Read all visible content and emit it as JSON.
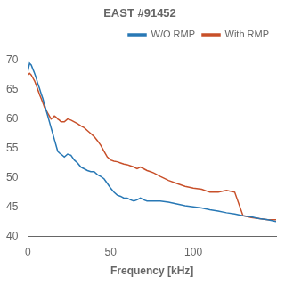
{
  "chart_data": {
    "type": "line",
    "title": "EAST #91452",
    "xlabel": "Frequency [kHz]",
    "xlim": [
      0,
      150
    ],
    "ylim": [
      40,
      72
    ],
    "xticks": [
      0,
      50,
      100
    ],
    "yticks": [
      40,
      45,
      50,
      55,
      60,
      65,
      70
    ],
    "grid": false,
    "legend": "upper right",
    "series": [
      {
        "name": "W/O RMP",
        "color": "#2878b5",
        "x": [
          0,
          1,
          2,
          3,
          4,
          5,
          6,
          7,
          8,
          9,
          10,
          11,
          12,
          13,
          14,
          15,
          16,
          17,
          18,
          19,
          20,
          22,
          24,
          26,
          28,
          30,
          32,
          34,
          36,
          38,
          40,
          42,
          44,
          46,
          48,
          50,
          52,
          54,
          56,
          58,
          60,
          62,
          64,
          66,
          68,
          70,
          72,
          74,
          76,
          78,
          80,
          85,
          90,
          95,
          100,
          105,
          110,
          115,
          120,
          125,
          130,
          135,
          140,
          145,
          150
        ],
        "values": [
          68.2,
          69.5,
          69.2,
          68.5,
          67.8,
          67.0,
          66.0,
          65.2,
          64.3,
          63.5,
          62.5,
          61.5,
          60.5,
          59.5,
          58.5,
          57.5,
          56.5,
          55.5,
          54.5,
          54.2,
          54.0,
          53.5,
          54.0,
          53.8,
          53.0,
          52.5,
          51.8,
          51.5,
          51.2,
          51.0,
          51.0,
          50.5,
          50.2,
          49.8,
          49.0,
          48.2,
          47.5,
          47.0,
          46.8,
          46.5,
          46.5,
          46.2,
          46.0,
          46.2,
          46.5,
          46.2,
          46.0,
          46.0,
          46.0,
          46.0,
          46.0,
          45.8,
          45.5,
          45.2,
          45.0,
          44.8,
          44.5,
          44.3,
          44.0,
          43.8,
          43.5,
          43.3,
          43.0,
          42.8,
          42.5
        ]
      },
      {
        "name": "With RMP",
        "color": "#c8502a",
        "x": [
          0,
          1,
          2,
          3,
          4,
          5,
          6,
          7,
          8,
          9,
          10,
          11,
          12,
          13,
          14,
          15,
          16,
          17,
          18,
          19,
          20,
          22,
          24,
          26,
          28,
          30,
          32,
          34,
          36,
          38,
          40,
          42,
          44,
          46,
          48,
          50,
          52,
          54,
          56,
          58,
          60,
          62,
          64,
          66,
          68,
          70,
          72,
          74,
          76,
          78,
          80,
          85,
          90,
          95,
          100,
          105,
          110,
          115,
          120,
          125,
          130,
          135,
          140,
          145,
          150
        ],
        "values": [
          67.5,
          67.8,
          67.5,
          67.0,
          66.5,
          65.8,
          65.0,
          64.2,
          63.5,
          62.8,
          62.0,
          61.5,
          61.0,
          60.5,
          60.0,
          60.2,
          60.5,
          60.3,
          60.0,
          59.8,
          59.5,
          59.5,
          60.0,
          59.8,
          59.5,
          59.2,
          58.8,
          58.5,
          58.0,
          57.5,
          57.0,
          56.3,
          55.5,
          54.5,
          53.5,
          53.0,
          52.8,
          52.7,
          52.5,
          52.3,
          52.2,
          52.0,
          51.8,
          51.5,
          51.8,
          51.5,
          51.2,
          51.0,
          50.8,
          50.5,
          50.2,
          49.5,
          49.0,
          48.5,
          48.2,
          48.0,
          47.5,
          47.5,
          47.8,
          47.5,
          43.5,
          43.2,
          43.0,
          42.8,
          42.8
        ]
      }
    ]
  }
}
